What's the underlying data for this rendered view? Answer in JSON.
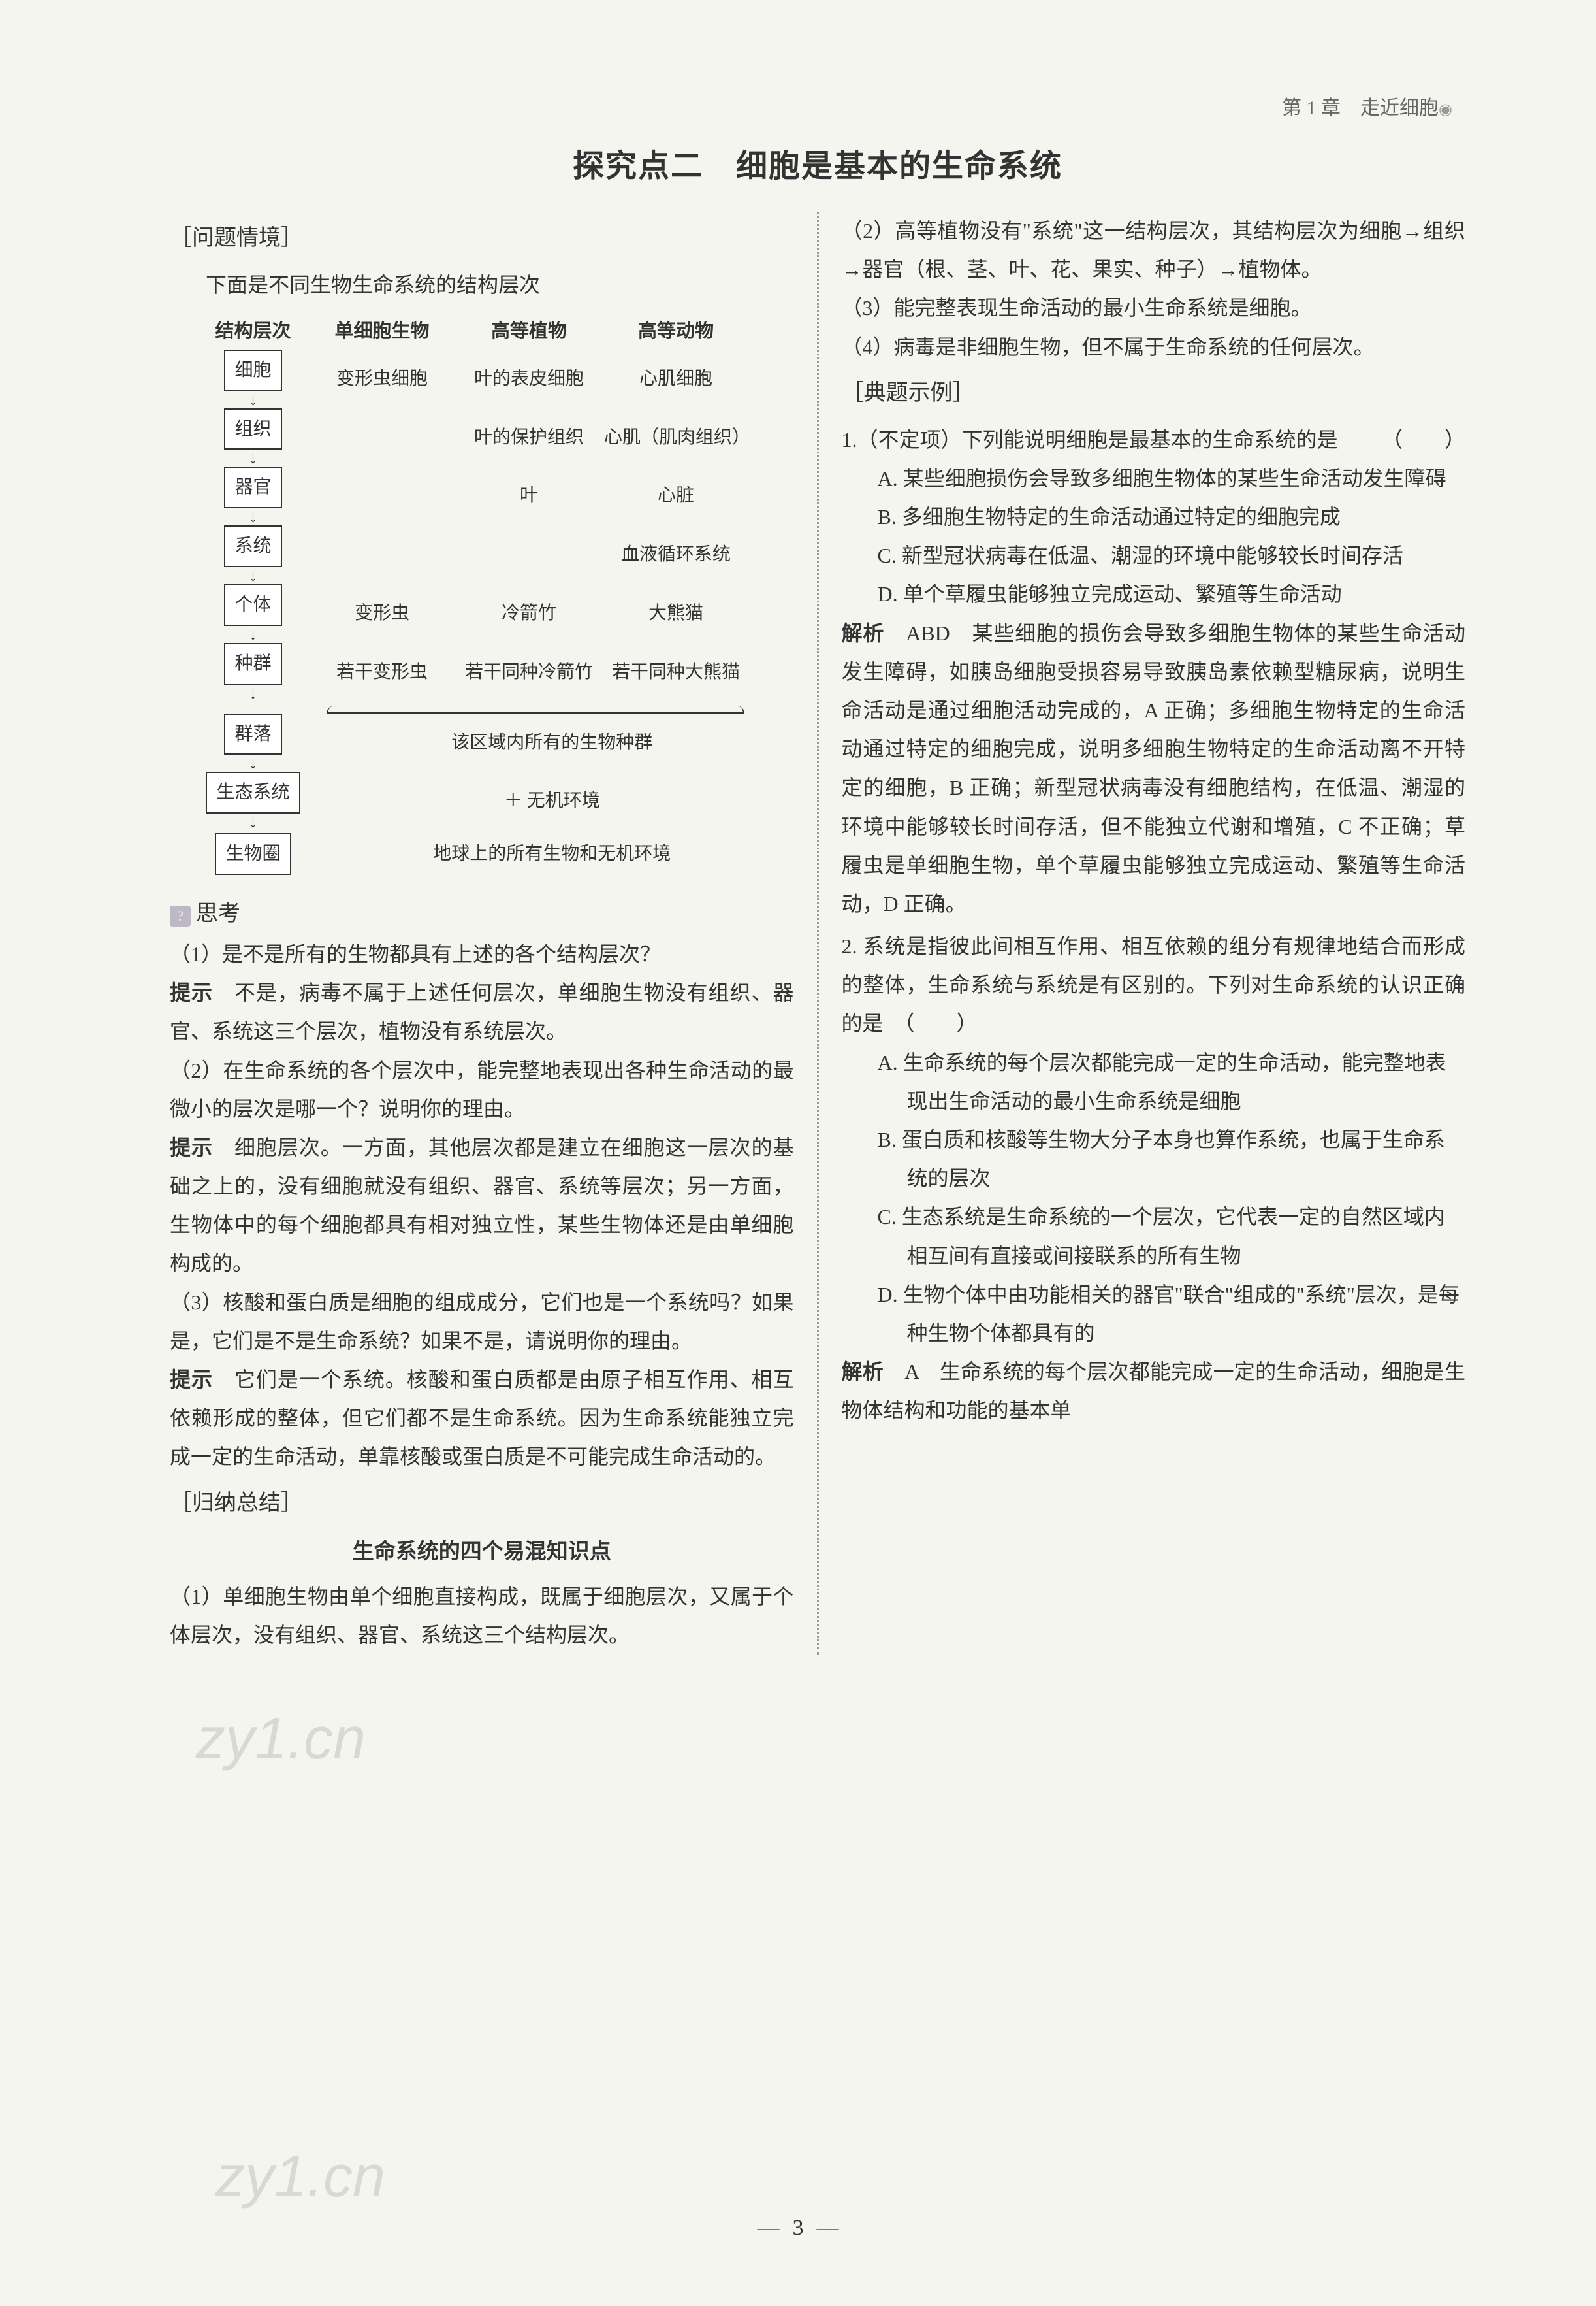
{
  "header": {
    "chapter": "第 1 章　走近细胞",
    "bullet": "◉"
  },
  "title": "探究点二　细胞是基本的生命系统",
  "left": {
    "s1_label": "［问题情境］",
    "s1_intro": "下面是不同生物生命系统的结构层次",
    "diagram": {
      "headers": [
        "结构层次",
        "单细胞生物",
        "高等植物",
        "高等动物"
      ],
      "levels": [
        "细胞",
        "组织",
        "器官",
        "系统",
        "个体",
        "种群",
        "群落",
        "生态系统",
        "生物圈"
      ],
      "row_cell": [
        "变形虫细胞",
        "叶的表皮细胞",
        "心肌细胞"
      ],
      "row_tissue": [
        "",
        "叶的保护组织",
        "心肌（肌肉组织）"
      ],
      "row_organ": [
        "",
        "叶",
        "心脏"
      ],
      "row_system": [
        "",
        "",
        "血液循环系统"
      ],
      "row_individual": [
        "变形虫",
        "冷箭竹",
        "大熊猫"
      ],
      "row_population": [
        "若干变形虫",
        "若干同种冷箭竹",
        "若干同种大熊猫"
      ],
      "community_note": "该区域内所有的生物种群",
      "ecosystem_note": "＋ 无机环境",
      "biosphere_note": "地球上的所有生物和无机环境"
    },
    "think_label": "思考",
    "q1": "（1）是不是所有的生物都具有上述的各个结构层次？",
    "q1_hint_label": "提示",
    "q1_hint": "　不是，病毒不属于上述任何层次，单细胞生物没有组织、器官、系统这三个层次，植物没有系统层次。",
    "q2": "（2）在生命系统的各个层次中，能完整地表现出各种生命活动的最微小的层次是哪一个？说明你的理由。",
    "q2_hint_label": "提示",
    "q2_hint": "　细胞层次。一方面，其他层次都是建立在细胞这一层次的基础之上的，没有细胞就没有组织、器官、系统等层次；另一方面，生物体中的每个细胞都具有相对独立性，某些生物体还是由单细胞构成的。",
    "q3": "（3）核酸和蛋白质是细胞的组成成分，它们也是一个系统吗？如果是，它们是不是生命系统？如果不是，请说明你的理由。",
    "q3_hint_label": "提示",
    "q3_hint": "　它们是一个系统。核酸和蛋白质都是由原子相互作用、相互依赖形成的整体，但它们都不是生命系统。因为生命系统能独立完成一定的生命活动，单靠核酸或蛋白质是不可能完成生命活动的。",
    "s2_label": "［归纳总结］",
    "s2_subtitle": "生命系统的四个易混知识点",
    "p1": "（1）单细胞生物由单个细胞直接构成，既属于细胞层次，又属于个体层次，没有组织、器官、系统这三个结构层次。"
  },
  "right": {
    "p2": "（2）高等植物没有\"系统\"这一结构层次，其结构层次为细胞→组织→器官（根、茎、叶、花、果实、种子）→植物体。",
    "p3": "（3）能完整表现生命活动的最小生命系统是细胞。",
    "p4": "（4）病毒是非细胞生物，但不属于生命系统的任何层次。",
    "s3_label": "［典题示例］",
    "q1_stem": "1.（不定项）下列能说明细胞是最基本的生命系统的是",
    "q1_paren": "（　　）",
    "q1_a": "A. 某些细胞损伤会导致多细胞生物体的某些生命活动发生障碍",
    "q1_b": "B. 多细胞生物特定的生命活动通过特定的细胞完成",
    "q1_c": "C. 新型冠状病毒在低温、潮湿的环境中能够较长时间存活",
    "q1_d": "D. 单个草履虫能够独立完成运动、繁殖等生命活动",
    "q1_ans_label": "解析",
    "q1_ans_choice": "ABD",
    "q1_ans": "　某些细胞的损伤会导致多细胞生物体的某些生命活动发生障碍，如胰岛细胞受损容易导致胰岛素依赖型糖尿病，说明生命活动是通过细胞活动完成的，A 正确；多细胞生物特定的生命活动通过特定的细胞完成，说明多细胞生物特定的生命活动离不开特定的细胞，B 正确；新型冠状病毒没有细胞结构，在低温、潮湿的环境中能够较长时间存活，但不能独立代谢和增殖，C 不正确；草履虫是单细胞生物，单个草履虫能够独立完成运动、繁殖等生命活动，D 正确。",
    "q2_stem": "2. 系统是指彼此间相互作用、相互依赖的组分有规律地结合而形成的整体，生命系统与系统是有区别的。下列对生命系统的认识正确的是　（　　）",
    "q2_a": "A. 生命系统的每个层次都能完成一定的生命活动，能完整地表现出生命活动的最小生命系统是细胞",
    "q2_b": "B. 蛋白质和核酸等生物大分子本身也算作系统，也属于生命系统的层次",
    "q2_c": "C. 生态系统是生命系统的一个层次，它代表一定的自然区域内相互间有直接或间接联系的所有生物",
    "q2_d": "D. 生物个体中由功能相关的器官\"联合\"组成的\"系统\"层次，是每种生物个体都具有的",
    "q2_ans_label": "解析",
    "q2_ans_choice": "A",
    "q2_ans": "　生命系统的每个层次都能完成一定的生命活动，细胞是生物体结构和功能的基本单"
  },
  "page_number": "3",
  "watermark": "zy1.cn"
}
